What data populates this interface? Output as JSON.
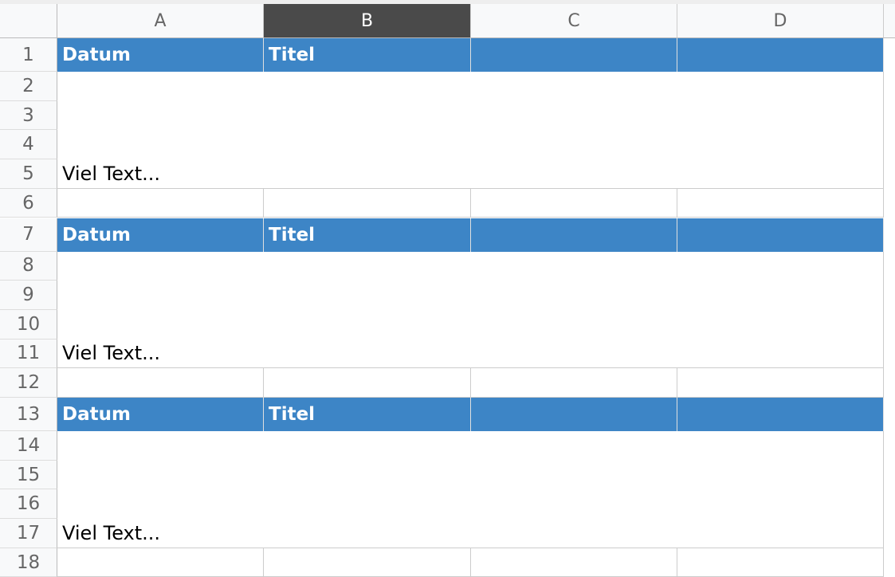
{
  "column_headers": [
    "A",
    "B",
    "C",
    "D"
  ],
  "row_numbers": [
    1,
    2,
    3,
    4,
    5,
    6,
    7,
    8,
    9,
    10,
    11,
    12,
    13,
    14,
    15,
    16,
    17,
    18
  ],
  "blocks": [
    {
      "header": [
        "Datum",
        "Titel"
      ],
      "body": "Viel Text..."
    },
    {
      "header": [
        "Datum",
        "Titel"
      ],
      "body": "Viel Text..."
    },
    {
      "header": [
        "Datum",
        "Titel"
      ],
      "body": "Viel Text..."
    }
  ]
}
